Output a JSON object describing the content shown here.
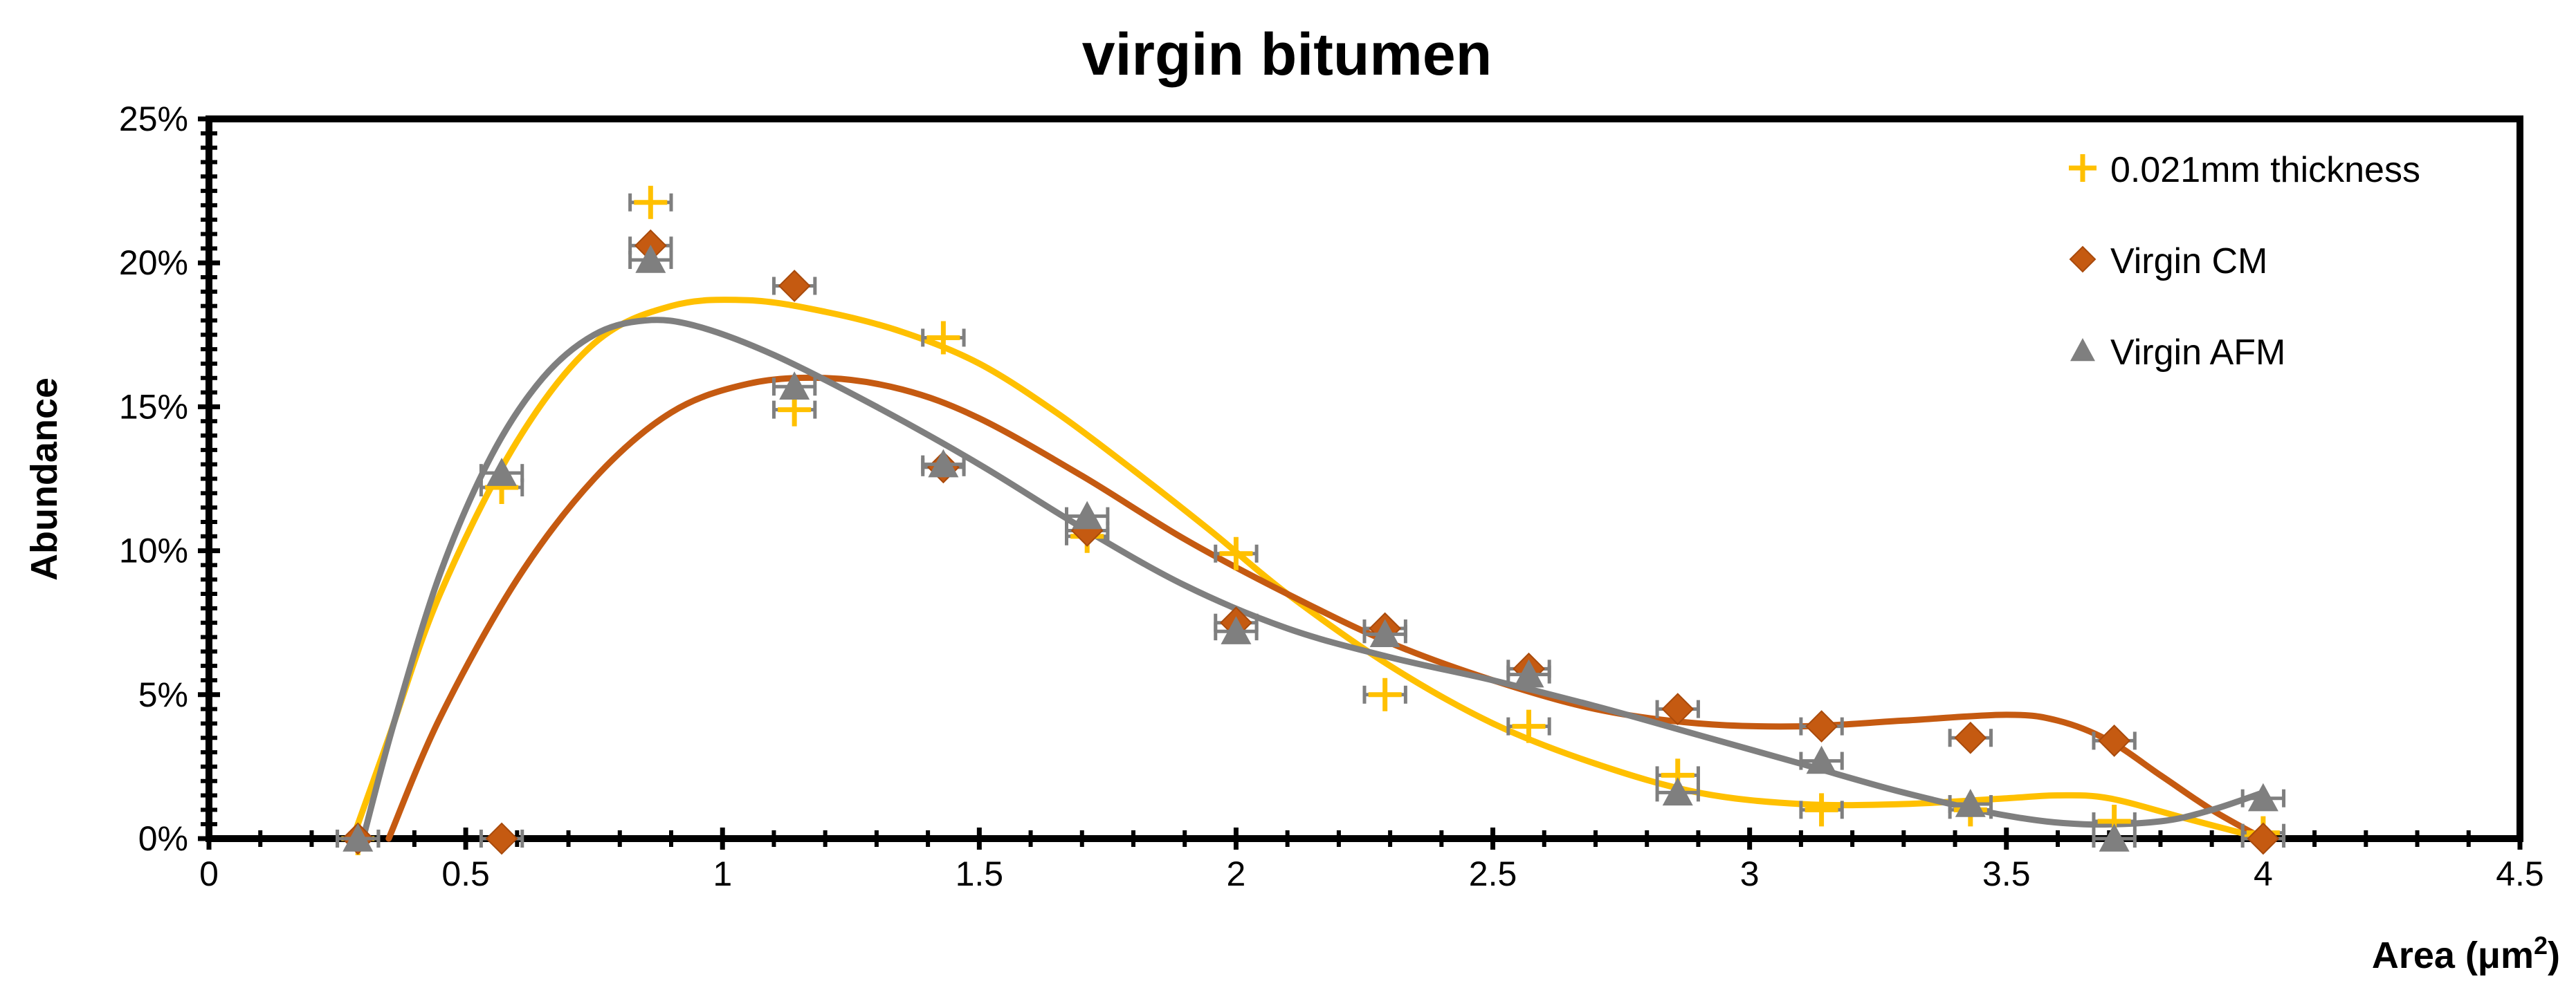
{
  "chart_data": {
    "type": "scatter",
    "title": "virgin bitumen",
    "xlabel": "Area (μm",
    "xlabel_sup": "2",
    "xlabel_end": ")",
    "ylabel": "Abundance",
    "xlim": [
      0,
      4.5
    ],
    "ylim": [
      0,
      0.25
    ],
    "x_ticks": [
      0,
      0.5,
      1,
      1.5,
      2,
      2.5,
      3,
      3.5,
      4,
      4.5
    ],
    "x_tick_labels": [
      "0",
      "0.5",
      "1",
      "1.5",
      "2",
      "2.5",
      "3",
      "3.5",
      "4",
      "4.5"
    ],
    "y_ticks": [
      0,
      0.05,
      0.1,
      0.15,
      0.2,
      0.25
    ],
    "y_tick_labels": [
      "0%",
      "5%",
      "10%",
      "15%",
      "20%",
      "25%"
    ],
    "grid": false,
    "legend_position": "top-right",
    "error_bar_color": "#7f7f7f",
    "error_bar_halfwidth": 0.04,
    "series": [
      {
        "name": "0.021mm thickness",
        "marker": "plus",
        "color": "#ffc000",
        "x": [
          0.29,
          0.57,
          0.86,
          1.14,
          1.43,
          1.71,
          2.0,
          2.29,
          2.57,
          2.86,
          3.14,
          3.43,
          3.71,
          4.0
        ],
        "y": [
          0.0,
          0.122,
          0.221,
          0.149,
          0.174,
          0.105,
          0.099,
          0.05,
          0.039,
          0.022,
          0.01,
          0.01,
          0.006,
          0.002
        ],
        "fit_x": [
          0.28,
          0.35,
          0.45,
          0.6,
          0.75,
          0.9,
          1.05,
          1.2,
          1.35,
          1.5,
          1.65,
          1.8,
          1.95,
          2.1,
          2.3,
          2.5,
          2.7,
          2.9,
          3.1,
          3.3,
          3.5,
          3.6,
          3.7,
          3.85,
          4.0
        ],
        "fit_y": [
          0.0,
          0.035,
          0.085,
          0.138,
          0.172,
          0.185,
          0.187,
          0.183,
          0.176,
          0.165,
          0.148,
          0.128,
          0.107,
          0.085,
          0.06,
          0.04,
          0.026,
          0.016,
          0.012,
          0.012,
          0.014,
          0.015,
          0.014,
          0.007,
          0.0
        ]
      },
      {
        "name": "Virgin CM",
        "marker": "diamond",
        "color": "#c55a11",
        "x": [
          0.29,
          0.57,
          0.86,
          1.14,
          1.43,
          1.71,
          2.0,
          2.29,
          2.57,
          2.86,
          3.14,
          3.43,
          3.71,
          4.0
        ],
        "y": [
          0.0,
          0.0,
          0.206,
          0.192,
          0.129,
          0.107,
          0.075,
          0.073,
          0.059,
          0.045,
          0.039,
          0.035,
          0.034,
          0.0
        ],
        "fit_x": [
          0.35,
          0.45,
          0.6,
          0.75,
          0.9,
          1.05,
          1.2,
          1.35,
          1.5,
          1.7,
          1.9,
          2.1,
          2.3,
          2.5,
          2.7,
          2.9,
          3.1,
          3.3,
          3.5,
          3.6,
          3.7,
          3.8,
          3.9,
          4.0
        ],
        "fit_y": [
          0.0,
          0.042,
          0.09,
          0.125,
          0.148,
          0.158,
          0.16,
          0.156,
          0.146,
          0.126,
          0.104,
          0.085,
          0.068,
          0.055,
          0.045,
          0.04,
          0.039,
          0.041,
          0.043,
          0.041,
          0.034,
          0.022,
          0.01,
          0.0
        ]
      },
      {
        "name": "Virgin AFM",
        "marker": "triangle",
        "color": "#7f7f7f",
        "x": [
          0.29,
          0.57,
          0.86,
          1.14,
          1.43,
          1.71,
          2.0,
          2.29,
          2.57,
          2.86,
          3.14,
          3.43,
          3.71,
          4.0
        ],
        "y": [
          0.0,
          0.127,
          0.201,
          0.157,
          0.13,
          0.112,
          0.072,
          0.071,
          0.057,
          0.016,
          0.027,
          0.012,
          0.0,
          0.014
        ],
        "fit_x": [
          0.3,
          0.36,
          0.45,
          0.55,
          0.65,
          0.75,
          0.85,
          0.95,
          1.1,
          1.3,
          1.5,
          1.7,
          1.9,
          2.1,
          2.3,
          2.5,
          2.7,
          2.9,
          3.1,
          3.3,
          3.5,
          3.65,
          3.8,
          3.9,
          4.0
        ],
        "fit_y": [
          0.0,
          0.04,
          0.092,
          0.133,
          0.16,
          0.175,
          0.18,
          0.178,
          0.168,
          0.15,
          0.13,
          0.108,
          0.088,
          0.073,
          0.063,
          0.055,
          0.046,
          0.036,
          0.026,
          0.016,
          0.008,
          0.005,
          0.006,
          0.01,
          0.016
        ]
      }
    ]
  }
}
